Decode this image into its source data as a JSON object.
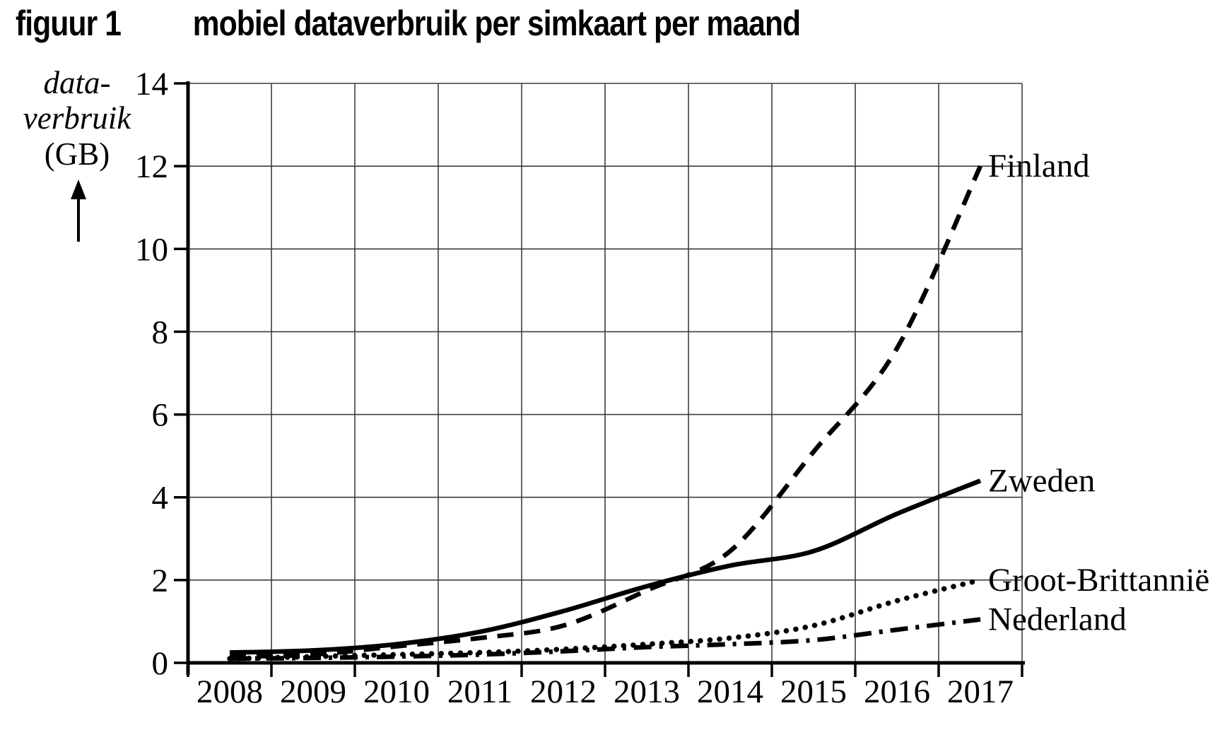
{
  "figure": {
    "label": "figuur 1",
    "title": "mobiel dataverbruik per simkaart per maand"
  },
  "y_axis": {
    "label_lines": [
      "data-",
      "verbruik",
      "(GB)"
    ],
    "arrow_direction": "up"
  },
  "chart_data": {
    "type": "line",
    "title": "mobiel dataverbruik per simkaart per maand",
    "ylabel": "data-verbruik (GB)",
    "xlabel": "",
    "x": [
      2008,
      2009,
      2010,
      2011,
      2012,
      2013,
      2014,
      2015,
      2016,
      2017
    ],
    "ylim": [
      0,
      14
    ],
    "y_ticks": [
      0,
      2,
      4,
      6,
      8,
      10,
      12,
      14
    ],
    "grid": true,
    "legend_position": "labels-at-line-ends",
    "background": "#ffffff",
    "ink_color": "#000000",
    "grid_color": "#3d3d3d",
    "series": [
      {
        "name": "Finland",
        "style": "dashed",
        "values": [
          0.15,
          0.2,
          0.4,
          0.6,
          0.9,
          1.75,
          2.7,
          5.1,
          7.6,
          12.0
        ]
      },
      {
        "name": "Zweden",
        "style": "solid",
        "values": [
          0.25,
          0.3,
          0.45,
          0.75,
          1.25,
          1.85,
          2.35,
          2.7,
          3.6,
          4.4
        ]
      },
      {
        "name": "Groot-Brittannië",
        "style": "dotted",
        "values": [
          0.1,
          0.15,
          0.2,
          0.25,
          0.33,
          0.45,
          0.6,
          0.9,
          1.5,
          2.0
        ]
      },
      {
        "name": "Nederland",
        "style": "dashdot",
        "values": [
          0.1,
          0.12,
          0.15,
          0.2,
          0.28,
          0.38,
          0.45,
          0.55,
          0.8,
          1.05
        ]
      }
    ]
  }
}
